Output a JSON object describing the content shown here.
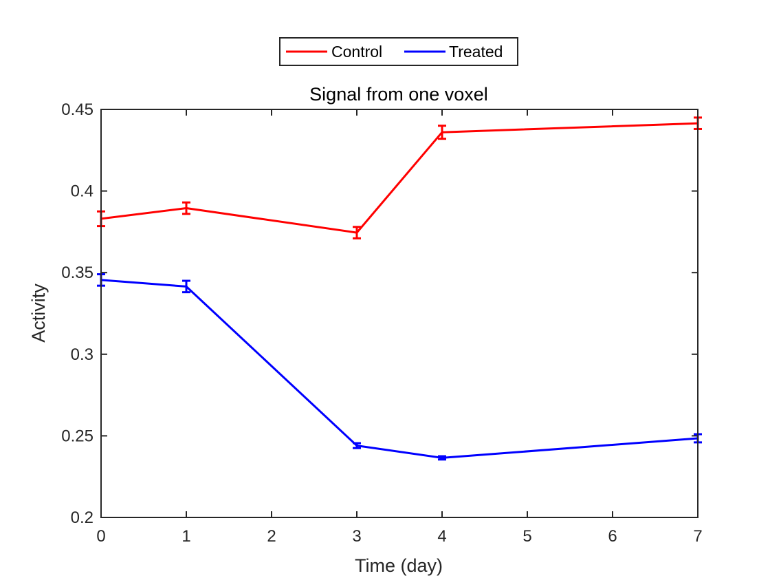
{
  "chart_data": {
    "type": "line",
    "title": "Signal from one voxel",
    "xlabel": "Time (day)",
    "ylabel": "Activity",
    "xlim": [
      0,
      7
    ],
    "ylim": [
      0.2,
      0.45
    ],
    "x_ticks": [
      "0",
      "1",
      "2",
      "3",
      "4",
      "5",
      "6",
      "7"
    ],
    "y_ticks": [
      "0.2",
      "0.25",
      "0.3",
      "0.35",
      "0.4",
      "0.45"
    ],
    "grid": false,
    "legend_position": "top-outside-center",
    "x": [
      0,
      1,
      3,
      4,
      7
    ],
    "series": [
      {
        "name": "Control",
        "color": "#ff0000",
        "values": [
          0.383,
          0.3895,
          0.3745,
          0.436,
          0.4415
        ],
        "errors": [
          0.0045,
          0.0035,
          0.0035,
          0.004,
          0.0035
        ]
      },
      {
        "name": "Treated",
        "color": "#0000ff",
        "values": [
          0.3455,
          0.3415,
          0.244,
          0.2365,
          0.2485
        ],
        "errors": [
          0.0035,
          0.0035,
          0.0015,
          0.001,
          0.0025
        ]
      }
    ]
  }
}
